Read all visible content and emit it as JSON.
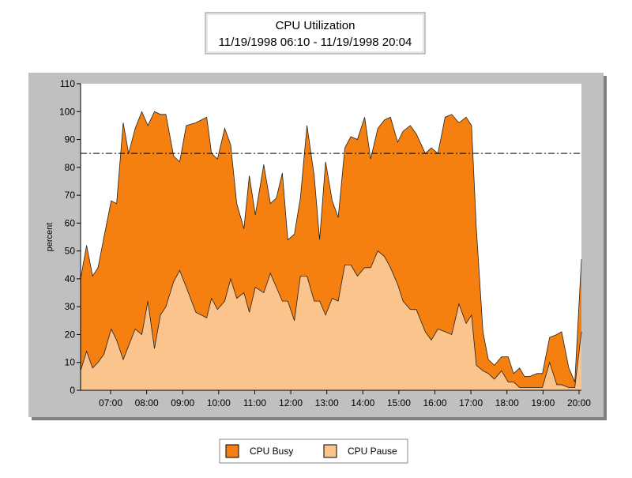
{
  "chart_data": {
    "type": "area",
    "title": "CPU Utilization",
    "subtitle": "11/19/1998 06:10 - 11/19/1998 20:04",
    "y_label": "percent",
    "x": [
      "06:10",
      "06:20",
      "06:30",
      "06:39",
      "06:49",
      "07:01",
      "07:10",
      "07:21",
      "07:30",
      "07:41",
      "07:52",
      "08:02",
      "08:13",
      "08:23",
      "08:32",
      "08:45",
      "08:55",
      "09:06",
      "09:22",
      "09:40",
      "09:48",
      "09:58",
      "10:10",
      "10:20",
      "10:30",
      "10:42",
      "10:51",
      "11:01",
      "11:15",
      "11:26",
      "11:36",
      "11:46",
      "11:55",
      "12:06",
      "12:16",
      "12:27",
      "12:39",
      "12:48",
      "12:58",
      "13:09",
      "13:19",
      "13:30",
      "13:40",
      "13:51",
      "14:03",
      "14:13",
      "14:25",
      "14:36",
      "14:46",
      "14:58",
      "15:07",
      "15:19",
      "15:29",
      "15:44",
      "15:54",
      "16:05",
      "16:17",
      "16:28",
      "16:40",
      "16:52",
      "17:01",
      "17:09",
      "17:20",
      "17:29",
      "17:39",
      "17:51",
      "18:02",
      "18:11",
      "18:21",
      "18:29",
      "18:38",
      "18:50",
      "18:59",
      "19:11",
      "19:23",
      "19:31",
      "19:43",
      "19:53",
      "20:04"
    ],
    "series": [
      {
        "name": "CPU Busy",
        "color": "#f57f0f",
        "values": [
          40,
          52,
          41,
          44,
          55,
          68,
          67,
          96,
          85,
          94,
          100,
          95,
          100,
          99,
          99,
          84,
          82,
          95,
          96,
          98,
          85,
          83,
          94,
          88,
          67,
          58,
          77,
          63,
          81,
          67,
          69,
          78,
          54,
          56,
          69,
          95,
          77,
          54,
          82,
          68,
          62,
          87,
          91,
          90,
          98,
          83,
          94,
          97,
          98,
          89,
          93,
          95,
          92,
          85,
          87,
          85,
          98,
          99,
          96,
          98,
          95,
          58,
          21,
          11,
          9,
          12,
          12,
          6,
          8,
          5,
          5,
          6,
          6,
          19,
          20,
          21,
          8,
          3,
          47
        ]
      },
      {
        "name": "CPU Pause",
        "color": "#fbc48c",
        "values": [
          7,
          14,
          8,
          10,
          13,
          22,
          18,
          11,
          16,
          22,
          20,
          32,
          15,
          27,
          30,
          39,
          43,
          37,
          28,
          26,
          33,
          29,
          32,
          40,
          33,
          35,
          28,
          37,
          35,
          42,
          37,
          32,
          32,
          25,
          41,
          41,
          32,
          32,
          27,
          33,
          32,
          45,
          45,
          41,
          44,
          44,
          50,
          48,
          44,
          38,
          32,
          29,
          29,
          21,
          18,
          22,
          21,
          20,
          31,
          24,
          27,
          9,
          7,
          6,
          4,
          7,
          3,
          3,
          1,
          1,
          1,
          1,
          1,
          10,
          2,
          2,
          1,
          1,
          21
        ]
      }
    ],
    "xlim": [
      "06:10",
      "20:04"
    ],
    "xticks": [
      "07:00",
      "08:00",
      "09:00",
      "10:00",
      "11:00",
      "12:00",
      "13:00",
      "14:00",
      "15:00",
      "16:00",
      "17:00",
      "18:00",
      "19:00",
      "20:00"
    ],
    "ylim": [
      0,
      110
    ],
    "yticks": [
      0,
      10,
      20,
      30,
      40,
      50,
      60,
      70,
      80,
      90,
      100,
      110
    ],
    "threshold": 85,
    "legend": "bottom"
  }
}
